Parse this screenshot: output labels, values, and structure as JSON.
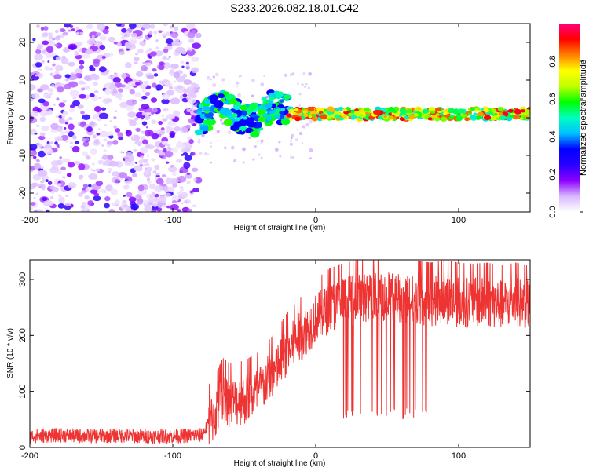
{
  "figure_title": "S233.2026.082.18.01.C42",
  "chart_data": [
    {
      "type": "heatmap",
      "name": "spectrogram",
      "xlabel": "Height of straight line (km)",
      "ylabel": "Frequency (Hz)",
      "xlim": [
        -200,
        150
      ],
      "ylim": [
        -25,
        25
      ],
      "xticks": [
        -200,
        -100,
        0,
        100
      ],
      "yticks": [
        -20,
        -10,
        0,
        10,
        20
      ],
      "colorbar": {
        "label": "Normalized spectral amplitude",
        "range": [
          0,
          1
        ],
        "ticks": [
          0.0,
          0.2,
          0.4,
          0.6,
          0.8
        ],
        "tick_labels": [
          "0.0",
          "0.2",
          "0.4",
          "0.6",
          "0.8"
        ],
        "colors": [
          "#ffffff",
          "#d9b8ff",
          "#8b00ff",
          "#2a00ff",
          "#0000ff",
          "#00c0ff",
          "#00ffc0",
          "#00ff00",
          "#c0ff00",
          "#ffff00",
          "#ff8000",
          "#ff0000",
          "#ff0080"
        ]
      },
      "features": [
        {
          "description": "broadband noise region",
          "x_range": [
            -200,
            -82
          ],
          "y_range": [
            -25,
            25
          ],
          "amplitude": 0.15
        },
        {
          "description": "signal trace near 0 Hz",
          "x_range": [
            -82,
            150
          ],
          "y_center": 1,
          "amplitude_range": [
            0.3,
            0.95
          ]
        }
      ]
    },
    {
      "type": "line",
      "name": "snr",
      "xlabel": "Height of straight line (km)",
      "ylabel": "SNR (10 * v/v)",
      "xlim": [
        -200,
        150
      ],
      "ylim": [
        0,
        335
      ],
      "xticks": [
        -200,
        -100,
        0,
        100
      ],
      "yticks": [
        0,
        100,
        200,
        300
      ],
      "color": "#ee3333",
      "series": [
        {
          "name": "SNR",
          "x": [
            -200,
            -180,
            -160,
            -140,
            -120,
            -100,
            -80,
            -70,
            -65,
            -60,
            -50,
            -40,
            -30,
            -20,
            -10,
            0,
            10,
            20,
            30,
            40,
            50,
            60,
            70,
            80,
            90,
            100,
            110,
            120,
            130,
            140,
            150
          ],
          "values": [
            20,
            22,
            20,
            21,
            20,
            20,
            22,
            60,
            90,
            80,
            85,
            100,
            130,
            170,
            200,
            230,
            250,
            260,
            265,
            270,
            270,
            268,
            265,
            260,
            265,
            260,
            258,
            260,
            255,
            260,
            255
          ]
        }
      ]
    }
  ]
}
